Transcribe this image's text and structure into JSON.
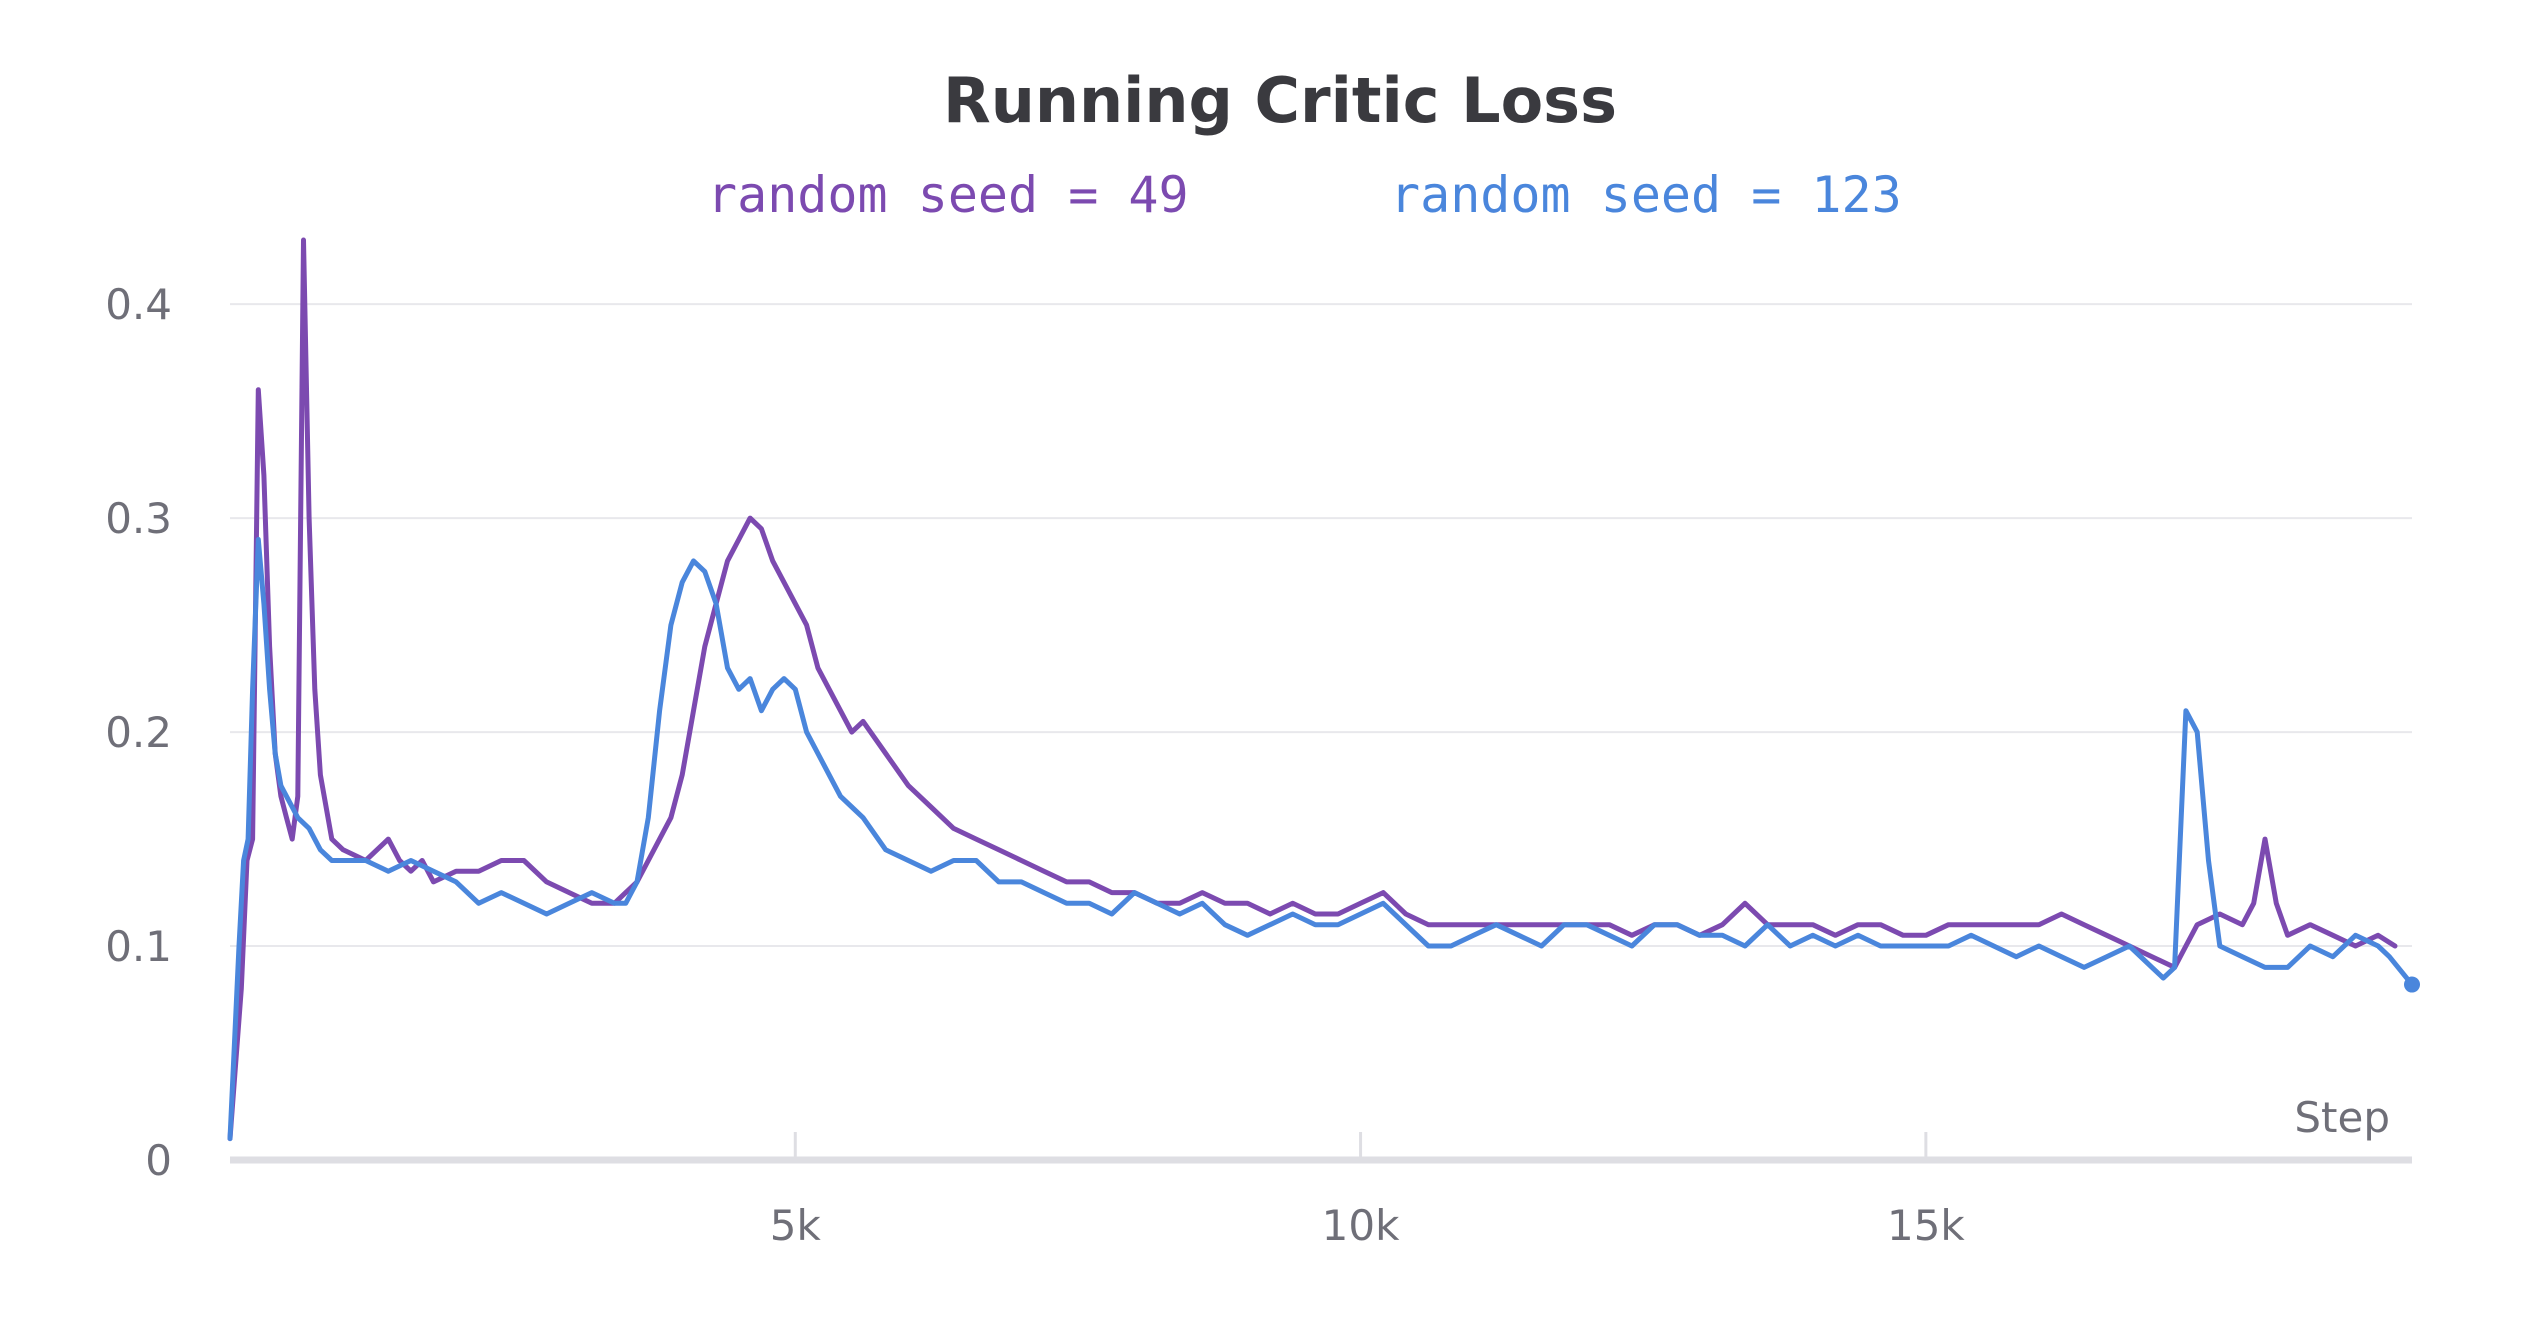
{
  "chart_data": {
    "type": "line",
    "title": "Running Critic Loss",
    "xlabel": "Step",
    "ylabel": "",
    "xlim": [
      0,
      19300
    ],
    "ylim": [
      0,
      0.43
    ],
    "y_ticks": [
      0,
      0.1,
      0.2,
      0.3,
      0.4
    ],
    "y_tick_labels": [
      "0",
      "0.1",
      "0.2",
      "0.3",
      "0.4"
    ],
    "x_ticks": [
      5000,
      10000,
      15000
    ],
    "x_tick_labels": [
      "5k",
      "10k",
      "15k"
    ],
    "grid": "horizontal",
    "legend_position": "top",
    "series": [
      {
        "name": "random seed = 49",
        "color": "#7c4ab0",
        "points": [
          [
            0,
            0.01
          ],
          [
            100,
            0.08
          ],
          [
            150,
            0.14
          ],
          [
            200,
            0.15
          ],
          [
            250,
            0.36
          ],
          [
            300,
            0.32
          ],
          [
            350,
            0.24
          ],
          [
            400,
            0.19
          ],
          [
            450,
            0.17
          ],
          [
            500,
            0.16
          ],
          [
            550,
            0.15
          ],
          [
            600,
            0.17
          ],
          [
            650,
            0.43
          ],
          [
            700,
            0.3
          ],
          [
            750,
            0.22
          ],
          [
            800,
            0.18
          ],
          [
            900,
            0.15
          ],
          [
            1000,
            0.145
          ],
          [
            1200,
            0.14
          ],
          [
            1400,
            0.15
          ],
          [
            1500,
            0.14
          ],
          [
            1600,
            0.135
          ],
          [
            1700,
            0.14
          ],
          [
            1800,
            0.13
          ],
          [
            2000,
            0.135
          ],
          [
            2200,
            0.135
          ],
          [
            2400,
            0.14
          ],
          [
            2600,
            0.14
          ],
          [
            2800,
            0.13
          ],
          [
            3000,
            0.125
          ],
          [
            3200,
            0.12
          ],
          [
            3400,
            0.12
          ],
          [
            3500,
            0.125
          ],
          [
            3600,
            0.13
          ],
          [
            3700,
            0.14
          ],
          [
            3800,
            0.15
          ],
          [
            3900,
            0.16
          ],
          [
            4000,
            0.18
          ],
          [
            4100,
            0.21
          ],
          [
            4200,
            0.24
          ],
          [
            4300,
            0.26
          ],
          [
            4400,
            0.28
          ],
          [
            4500,
            0.29
          ],
          [
            4600,
            0.3
          ],
          [
            4700,
            0.295
          ],
          [
            4800,
            0.28
          ],
          [
            4900,
            0.27
          ],
          [
            5000,
            0.26
          ],
          [
            5100,
            0.25
          ],
          [
            5200,
            0.23
          ],
          [
            5300,
            0.22
          ],
          [
            5400,
            0.21
          ],
          [
            5500,
            0.2
          ],
          [
            5600,
            0.205
          ],
          [
            5800,
            0.19
          ],
          [
            6000,
            0.175
          ],
          [
            6200,
            0.165
          ],
          [
            6400,
            0.155
          ],
          [
            6600,
            0.15
          ],
          [
            6800,
            0.145
          ],
          [
            7000,
            0.14
          ],
          [
            7200,
            0.135
          ],
          [
            7400,
            0.13
          ],
          [
            7600,
            0.13
          ],
          [
            7800,
            0.125
          ],
          [
            8000,
            0.125
          ],
          [
            8200,
            0.12
          ],
          [
            8400,
            0.12
          ],
          [
            8600,
            0.125
          ],
          [
            8800,
            0.12
          ],
          [
            9000,
            0.12
          ],
          [
            9200,
            0.115
          ],
          [
            9400,
            0.12
          ],
          [
            9600,
            0.115
          ],
          [
            9800,
            0.115
          ],
          [
            10000,
            0.12
          ],
          [
            10200,
            0.125
          ],
          [
            10400,
            0.115
          ],
          [
            10600,
            0.11
          ],
          [
            10800,
            0.11
          ],
          [
            11000,
            0.11
          ],
          [
            11200,
            0.11
          ],
          [
            11400,
            0.11
          ],
          [
            11600,
            0.11
          ],
          [
            11800,
            0.11
          ],
          [
            12000,
            0.11
          ],
          [
            12200,
            0.11
          ],
          [
            12400,
            0.105
          ],
          [
            12600,
            0.11
          ],
          [
            12800,
            0.11
          ],
          [
            13000,
            0.105
          ],
          [
            13200,
            0.11
          ],
          [
            13400,
            0.12
          ],
          [
            13600,
            0.11
          ],
          [
            13800,
            0.11
          ],
          [
            14000,
            0.11
          ],
          [
            14200,
            0.105
          ],
          [
            14400,
            0.11
          ],
          [
            14600,
            0.11
          ],
          [
            14800,
            0.105
          ],
          [
            15000,
            0.105
          ],
          [
            15200,
            0.11
          ],
          [
            15400,
            0.11
          ],
          [
            15600,
            0.11
          ],
          [
            15800,
            0.11
          ],
          [
            16000,
            0.11
          ],
          [
            16200,
            0.115
          ],
          [
            16400,
            0.11
          ],
          [
            16600,
            0.105
          ],
          [
            16800,
            0.1
          ],
          [
            17000,
            0.095
          ],
          [
            17200,
            0.09
          ],
          [
            17300,
            0.1
          ],
          [
            17400,
            0.11
          ],
          [
            17600,
            0.115
          ],
          [
            17800,
            0.11
          ],
          [
            17900,
            0.12
          ],
          [
            18000,
            0.15
          ],
          [
            18100,
            0.12
          ],
          [
            18200,
            0.105
          ],
          [
            18400,
            0.11
          ],
          [
            18600,
            0.105
          ],
          [
            18800,
            0.1
          ],
          [
            19000,
            0.105
          ],
          [
            19150,
            0.1
          ]
        ]
      },
      {
        "name": "random seed = 123",
        "color": "#4a86dc",
        "points": [
          [
            0,
            0.01
          ],
          [
            80,
            0.1
          ],
          [
            120,
            0.14
          ],
          [
            160,
            0.15
          ],
          [
            200,
            0.22
          ],
          [
            250,
            0.29
          ],
          [
            300,
            0.26
          ],
          [
            350,
            0.22
          ],
          [
            400,
            0.19
          ],
          [
            450,
            0.175
          ],
          [
            500,
            0.17
          ],
          [
            550,
            0.165
          ],
          [
            600,
            0.16
          ],
          [
            700,
            0.155
          ],
          [
            800,
            0.145
          ],
          [
            900,
            0.14
          ],
          [
            1000,
            0.14
          ],
          [
            1200,
            0.14
          ],
          [
            1400,
            0.135
          ],
          [
            1600,
            0.14
          ],
          [
            1800,
            0.135
          ],
          [
            2000,
            0.13
          ],
          [
            2200,
            0.12
          ],
          [
            2400,
            0.125
          ],
          [
            2600,
            0.12
          ],
          [
            2800,
            0.115
          ],
          [
            3000,
            0.12
          ],
          [
            3200,
            0.125
          ],
          [
            3400,
            0.12
          ],
          [
            3500,
            0.12
          ],
          [
            3600,
            0.13
          ],
          [
            3700,
            0.16
          ],
          [
            3800,
            0.21
          ],
          [
            3900,
            0.25
          ],
          [
            4000,
            0.27
          ],
          [
            4100,
            0.28
          ],
          [
            4200,
            0.275
          ],
          [
            4300,
            0.26
          ],
          [
            4400,
            0.23
          ],
          [
            4500,
            0.22
          ],
          [
            4600,
            0.225
          ],
          [
            4700,
            0.21
          ],
          [
            4800,
            0.22
          ],
          [
            4900,
            0.225
          ],
          [
            5000,
            0.22
          ],
          [
            5100,
            0.2
          ],
          [
            5200,
            0.19
          ],
          [
            5300,
            0.18
          ],
          [
            5400,
            0.17
          ],
          [
            5500,
            0.165
          ],
          [
            5600,
            0.16
          ],
          [
            5800,
            0.145
          ],
          [
            6000,
            0.14
          ],
          [
            6200,
            0.135
          ],
          [
            6400,
            0.14
          ],
          [
            6600,
            0.14
          ],
          [
            6800,
            0.13
          ],
          [
            7000,
            0.13
          ],
          [
            7200,
            0.125
          ],
          [
            7400,
            0.12
          ],
          [
            7600,
            0.12
          ],
          [
            7800,
            0.115
          ],
          [
            8000,
            0.125
          ],
          [
            8200,
            0.12
          ],
          [
            8400,
            0.115
          ],
          [
            8600,
            0.12
          ],
          [
            8800,
            0.11
          ],
          [
            9000,
            0.105
          ],
          [
            9200,
            0.11
          ],
          [
            9400,
            0.115
          ],
          [
            9600,
            0.11
          ],
          [
            9800,
            0.11
          ],
          [
            10000,
            0.115
          ],
          [
            10200,
            0.12
          ],
          [
            10400,
            0.11
          ],
          [
            10600,
            0.1
          ],
          [
            10800,
            0.1
          ],
          [
            11000,
            0.105
          ],
          [
            11200,
            0.11
          ],
          [
            11400,
            0.105
          ],
          [
            11600,
            0.1
          ],
          [
            11800,
            0.11
          ],
          [
            12000,
            0.11
          ],
          [
            12200,
            0.105
          ],
          [
            12400,
            0.1
          ],
          [
            12600,
            0.11
          ],
          [
            12800,
            0.11
          ],
          [
            13000,
            0.105
          ],
          [
            13200,
            0.105
          ],
          [
            13400,
            0.1
          ],
          [
            13600,
            0.11
          ],
          [
            13800,
            0.1
          ],
          [
            14000,
            0.105
          ],
          [
            14200,
            0.1
          ],
          [
            14400,
            0.105
          ],
          [
            14600,
            0.1
          ],
          [
            14800,
            0.1
          ],
          [
            15000,
            0.1
          ],
          [
            15200,
            0.1
          ],
          [
            15400,
            0.105
          ],
          [
            15600,
            0.1
          ],
          [
            15800,
            0.095
          ],
          [
            16000,
            0.1
          ],
          [
            16200,
            0.095
          ],
          [
            16400,
            0.09
          ],
          [
            16600,
            0.095
          ],
          [
            16800,
            0.1
          ],
          [
            17000,
            0.09
          ],
          [
            17100,
            0.085
          ],
          [
            17200,
            0.09
          ],
          [
            17300,
            0.21
          ],
          [
            17400,
            0.2
          ],
          [
            17500,
            0.14
          ],
          [
            17600,
            0.1
          ],
          [
            17800,
            0.095
          ],
          [
            18000,
            0.09
          ],
          [
            18200,
            0.09
          ],
          [
            18400,
            0.1
          ],
          [
            18600,
            0.095
          ],
          [
            18800,
            0.105
          ],
          [
            19000,
            0.1
          ],
          [
            19100,
            0.095
          ],
          [
            19300,
            0.082
          ]
        ]
      }
    ]
  }
}
